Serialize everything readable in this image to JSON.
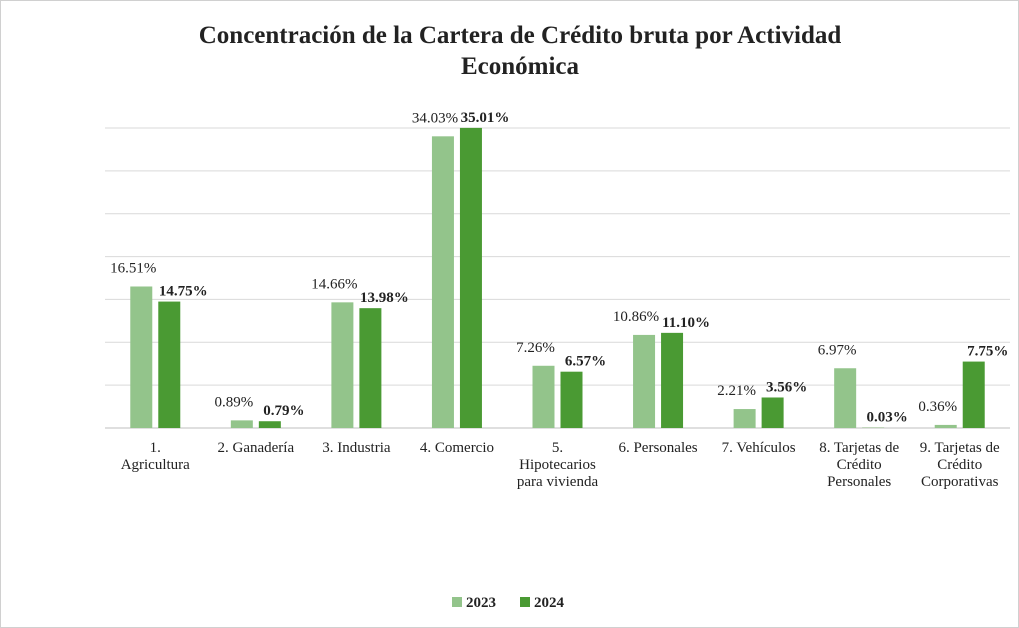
{
  "chart_data": {
    "type": "bar",
    "title": "Concentración de la Cartera de Crédito bruta por Actividad\nEconómica",
    "categories": [
      "1.\nAgricultura",
      "2. Ganadería",
      "3. Industria",
      "4. Comercio",
      "5.\nHipotecarios\npara vivienda",
      "6. Personales",
      "7. Vehículos",
      "8. Tarjetas de\nCrédito\nPersonales",
      "9. Tarjetas de\nCrédito\nCorporativas"
    ],
    "series": [
      {
        "name": "2023",
        "color": "#93c48b",
        "values": [
          16.51,
          0.89,
          14.66,
          34.03,
          7.26,
          10.86,
          2.21,
          6.97,
          0.36
        ],
        "value_labels": [
          "16.51%",
          "0.89%",
          "14.66%",
          "34.03%",
          "7.26%",
          "10.86%",
          "2.21%",
          "6.97%",
          "0.36%"
        ]
      },
      {
        "name": "2024",
        "color": "#4a9a33",
        "values": [
          14.75,
          0.79,
          13.98,
          35.01,
          6.57,
          11.1,
          3.56,
          0.03,
          7.75
        ],
        "value_labels": [
          "14.75%",
          "0.79%",
          "13.98%",
          "35.01%",
          "6.57%",
          "11.10%",
          "3.56%",
          "0.03%",
          "7.75%"
        ]
      }
    ],
    "ylim": [
      0,
      35
    ],
    "yticks": [
      0,
      5,
      10,
      15,
      20,
      25,
      30,
      35
    ],
    "grid": true,
    "legend": "bottom"
  }
}
